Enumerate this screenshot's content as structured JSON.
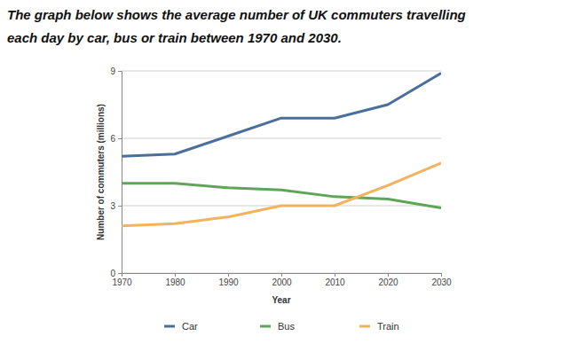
{
  "chart_data": {
    "type": "line",
    "title": "The graph below shows the average number of UK commuters travelling each day by car, bus or train between 1970 and 2030.",
    "x_label": "Year",
    "y_label": "Number of commuters (millions)",
    "x": [
      1970,
      1980,
      1990,
      2000,
      2010,
      2020,
      2030
    ],
    "series": [
      {
        "name": "Car",
        "color": "#4a6f9b",
        "values": [
          5.2,
          5.3,
          6.1,
          6.9,
          6.9,
          7.5,
          8.9
        ]
      },
      {
        "name": "Bus",
        "color": "#5fa557",
        "values": [
          4.0,
          4.0,
          3.8,
          3.7,
          3.4,
          3.3,
          2.9
        ]
      },
      {
        "name": "Train",
        "color": "#f3b35e",
        "values": [
          2.1,
          2.2,
          2.5,
          3.0,
          3.0,
          3.9,
          4.9
        ]
      }
    ],
    "xlim": [
      1970,
      2030
    ],
    "xticks": [
      1970,
      1980,
      1990,
      2000,
      2010,
      2020,
      2030
    ],
    "ylim": [
      0,
      9
    ],
    "yticks": [
      0,
      3,
      6,
      9
    ],
    "grid": true,
    "legend": "bottom"
  }
}
